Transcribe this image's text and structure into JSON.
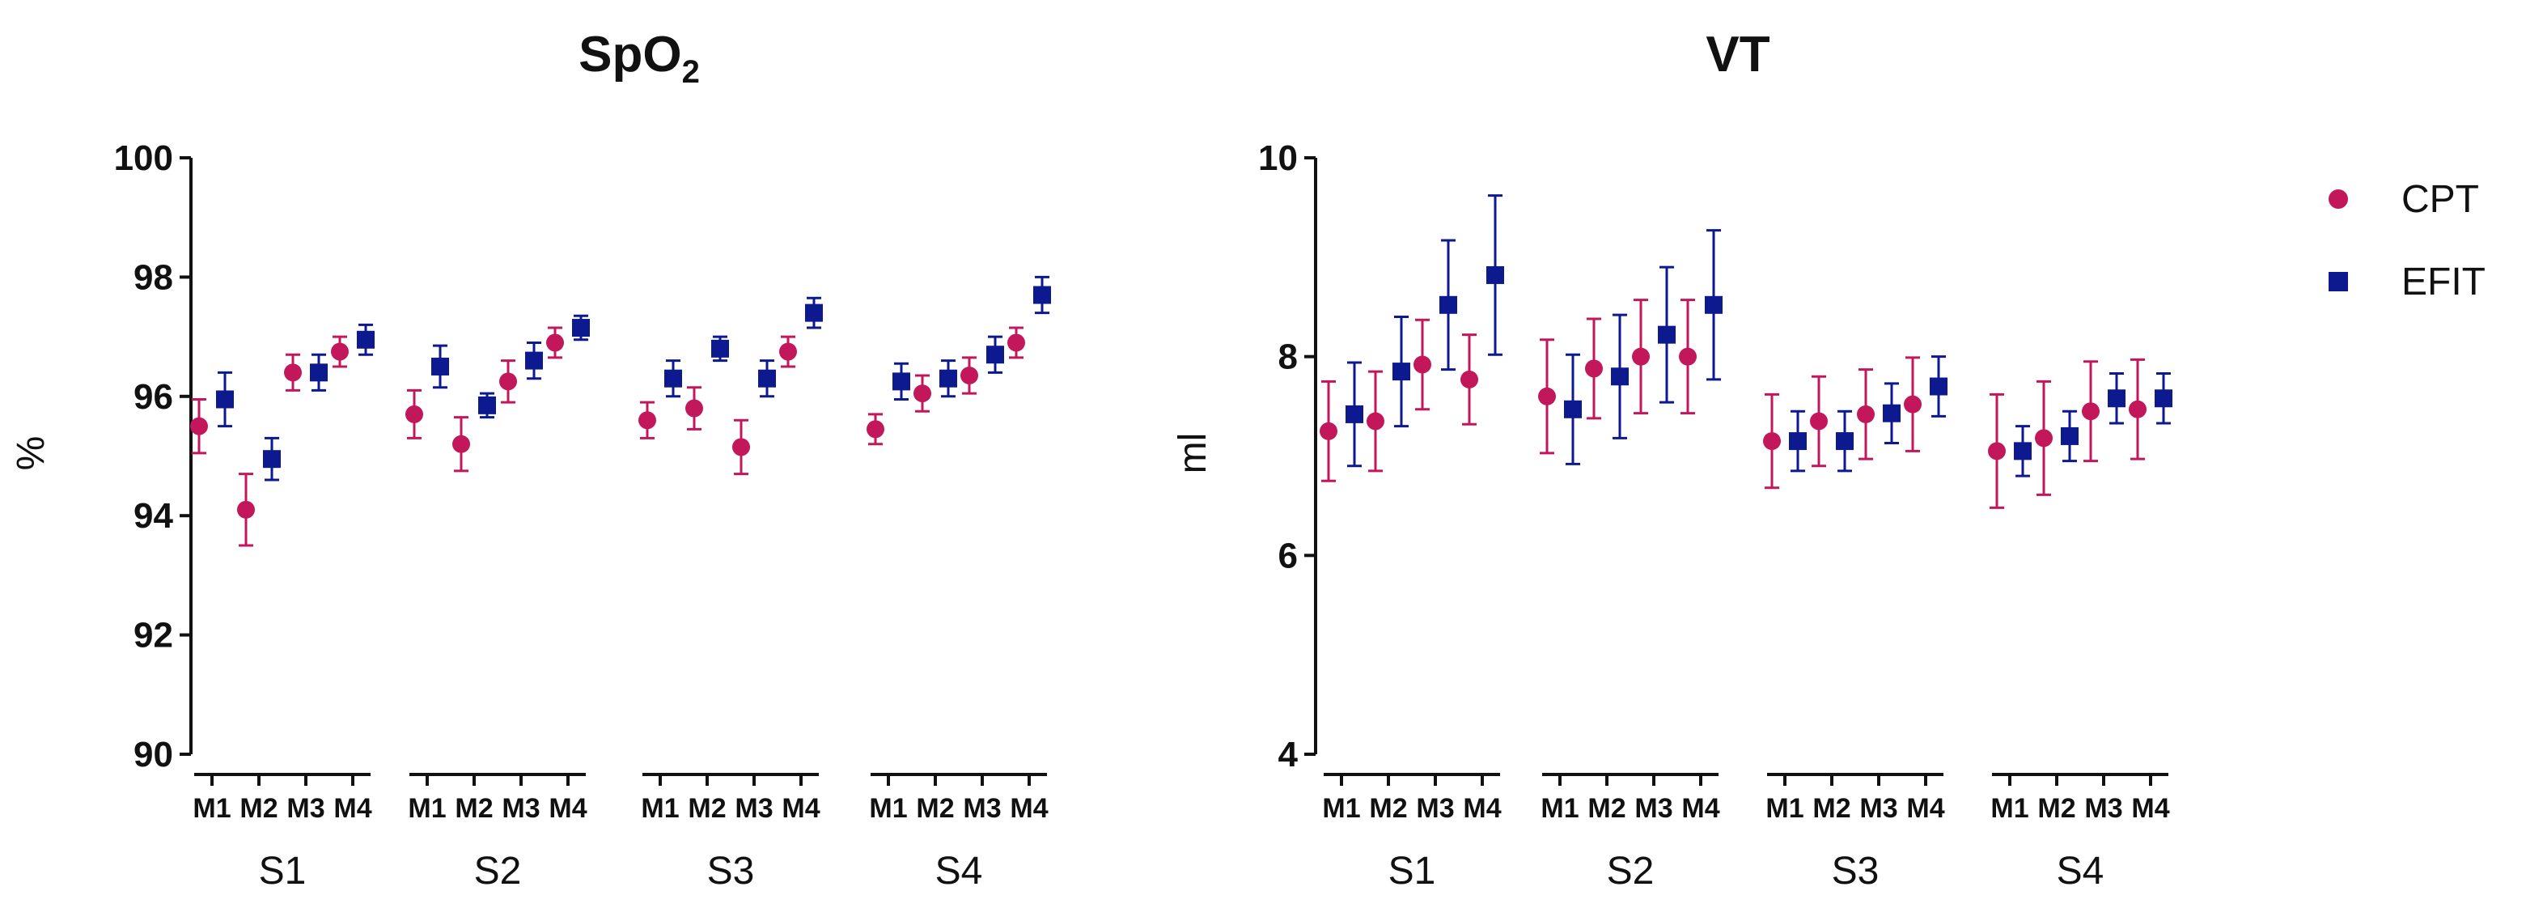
{
  "chart_data": [
    {
      "type": "scatter",
      "title": "SpO",
      "title_subscript": "2",
      "ylabel": "%",
      "ylim": [
        90,
        100
      ],
      "yticks": [
        90,
        92,
        94,
        96,
        98,
        100
      ],
      "groups": [
        "S1",
        "S2",
        "S3",
        "S4"
      ],
      "categories": [
        "M1",
        "M2",
        "M3",
        "M4"
      ],
      "series": [
        {
          "name": "CPT",
          "values": [
            [
              95.5,
              94.1,
              96.4,
              96.75
            ],
            [
              95.7,
              95.2,
              96.25,
              96.9
            ],
            [
              95.6,
              95.8,
              95.15,
              96.75
            ],
            [
              95.45,
              96.05,
              96.35,
              96.9
            ]
          ],
          "errors": [
            [
              0.45,
              0.6,
              0.3,
              0.25
            ],
            [
              0.4,
              0.45,
              0.35,
              0.25
            ],
            [
              0.3,
              0.35,
              0.45,
              0.25
            ],
            [
              0.25,
              0.3,
              0.3,
              0.25
            ]
          ]
        },
        {
          "name": "EFIT",
          "values": [
            [
              95.95,
              94.95,
              96.4,
              96.95
            ],
            [
              96.5,
              95.85,
              96.6,
              97.15
            ],
            [
              96.3,
              96.8,
              96.3,
              97.4
            ],
            [
              96.25,
              96.3,
              96.7,
              97.7
            ]
          ],
          "errors": [
            [
              0.45,
              0.35,
              0.3,
              0.25
            ],
            [
              0.35,
              0.2,
              0.3,
              0.2
            ],
            [
              0.3,
              0.2,
              0.3,
              0.25
            ],
            [
              0.3,
              0.3,
              0.3,
              0.3
            ]
          ]
        }
      ]
    },
    {
      "type": "scatter",
      "title": "VT",
      "ylabel": "ml",
      "ylim": [
        4,
        10
      ],
      "yticks": [
        4,
        6,
        8,
        10
      ],
      "groups": [
        "S1",
        "S2",
        "S3",
        "S4"
      ],
      "categories": [
        "M1",
        "M2",
        "M3",
        "M4"
      ],
      "series": [
        {
          "name": "CPT",
          "values": [
            [
              7.25,
              7.35,
              7.92,
              7.77
            ],
            [
              7.6,
              7.88,
              8.0,
              8.0
            ],
            [
              7.15,
              7.35,
              7.42,
              7.52
            ],
            [
              7.05,
              7.18,
              7.45,
              7.47
            ]
          ],
          "errors": [
            [
              0.5,
              0.5,
              0.45,
              0.45
            ],
            [
              0.57,
              0.5,
              0.57,
              0.57
            ],
            [
              0.47,
              0.45,
              0.45,
              0.47
            ],
            [
              0.57,
              0.57,
              0.5,
              0.5
            ]
          ]
        },
        {
          "name": "EFIT",
          "values": [
            [
              7.42,
              7.85,
              8.52,
              8.82
            ],
            [
              7.47,
              7.8,
              8.22,
              8.52
            ],
            [
              7.15,
              7.15,
              7.43,
              7.7
            ],
            [
              7.05,
              7.2,
              7.58,
              7.58
            ]
          ],
          "errors": [
            [
              0.52,
              0.55,
              0.65,
              0.8
            ],
            [
              0.55,
              0.62,
              0.68,
              0.75
            ],
            [
              0.3,
              0.3,
              0.3,
              0.3
            ],
            [
              0.25,
              0.25,
              0.25,
              0.25
            ]
          ]
        }
      ]
    }
  ],
  "legend": [
    {
      "label": "CPT",
      "marker": "circle",
      "color": "#c2185b"
    },
    {
      "label": "EFIT",
      "marker": "square",
      "color": "#0d1a8f"
    }
  ],
  "colors": {
    "CPT": "#c2185b",
    "EFIT": "#0d1a8f",
    "axis": "#111111"
  }
}
